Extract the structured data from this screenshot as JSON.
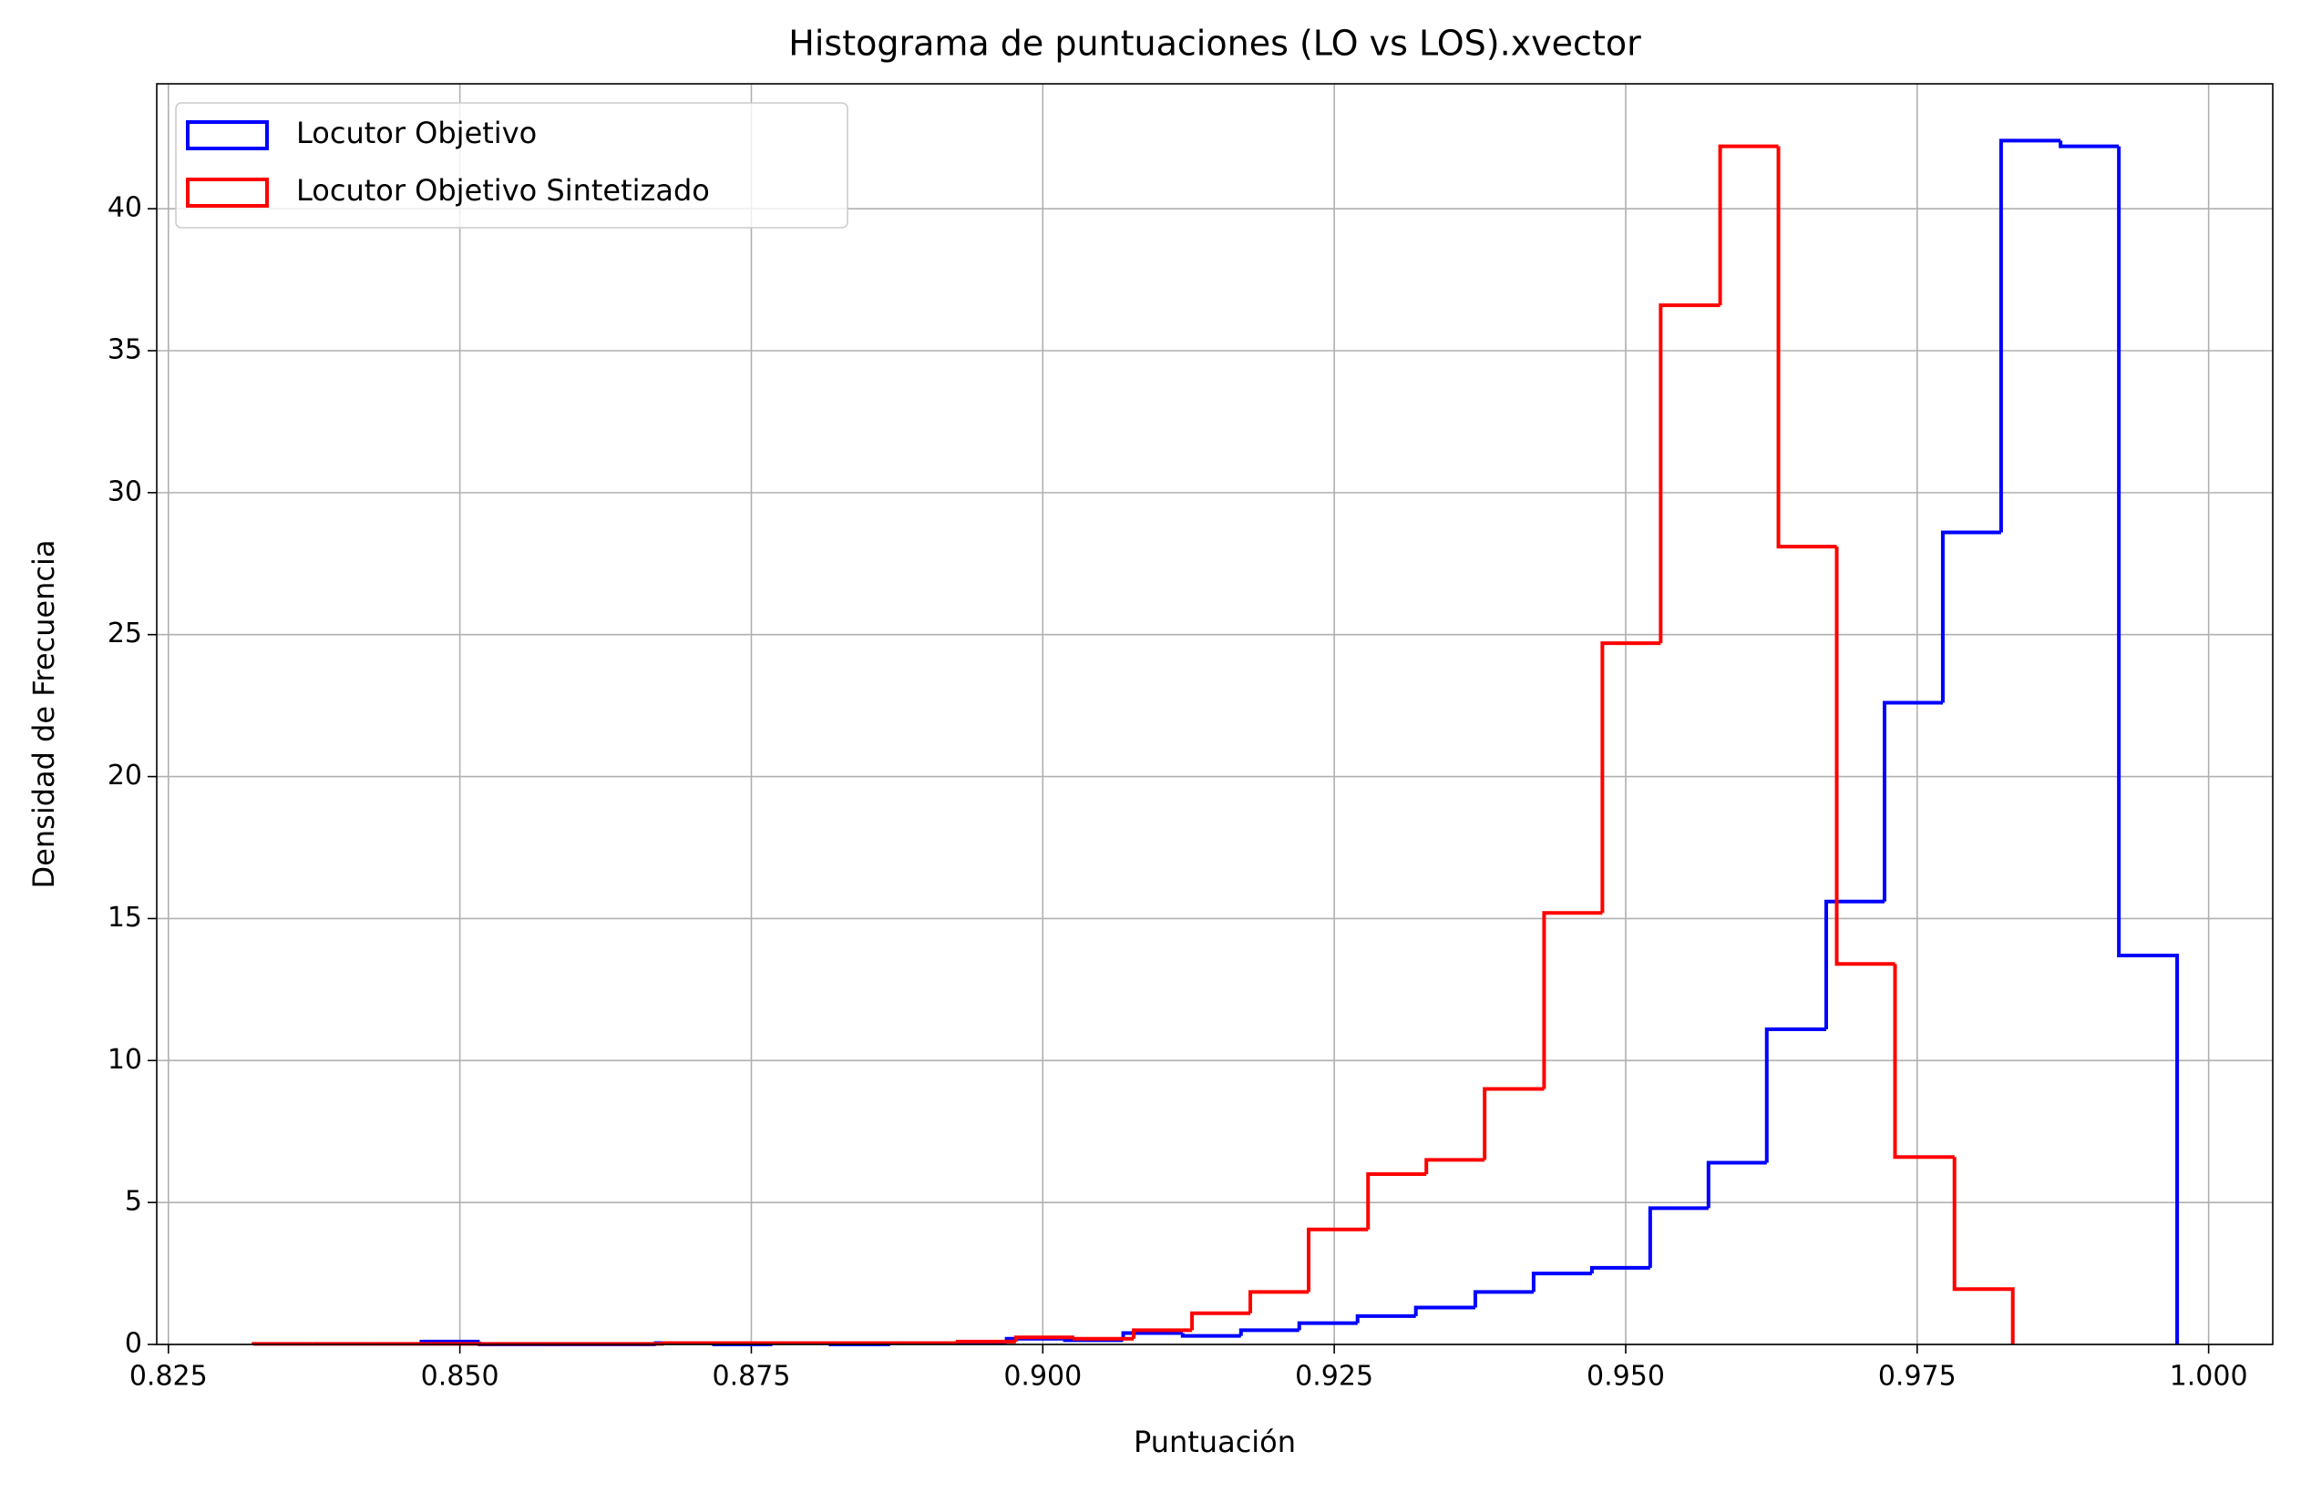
{
  "chart_data": {
    "type": "histogram",
    "title": "Histograma de puntuaciones (LO vs LOS).xvector",
    "x_label": "Puntuación",
    "y_label": "Densidad de Frecuencia",
    "xlim": [
      0.824,
      1.0055
    ],
    "ylim": [
      0,
      44.4
    ],
    "xticks": [
      0.825,
      {
        "value": 0.85,
        "label": "0.850"
      },
      0.875,
      {
        "value": 0.9,
        "label": "0.900"
      },
      0.925,
      {
        "value": 0.95,
        "label": "0.950"
      },
      0.975,
      {
        "value": 1,
        "label": "1.000"
      }
    ],
    "yticks": [
      0,
      5,
      10,
      15,
      20,
      25,
      30,
      35,
      40
    ],
    "grid": true,
    "legend_position": "upper-left",
    "series": [
      {
        "name": "Locutor Objetivo",
        "color": "#0000ff",
        "bins": [
          0.8467,
          0.8517,
          0.8567,
          0.8618,
          0.8668,
          0.8718,
          0.8768,
          0.8818,
          0.8869,
          0.8919,
          0.8969,
          0.9019,
          0.9069,
          0.912,
          0.917,
          0.922,
          0.927,
          0.932,
          0.9371,
          0.9421,
          0.9471,
          0.9521,
          0.9571,
          0.9621,
          0.9672,
          0.9722,
          0.9772,
          0.9822,
          0.9873,
          0.9923,
          0.9973
        ],
        "values": [
          0.1,
          0,
          0,
          0,
          0.05,
          0,
          0.05,
          0,
          0.05,
          0.05,
          0.2,
          0.15,
          0.4,
          0.3,
          0.5,
          0.75,
          1.0,
          1.3,
          1.85,
          2.5,
          2.7,
          4.8,
          6.4,
          11.1,
          15.6,
          22.6,
          28.6,
          42.4,
          42.2,
          13.7
        ]
      },
      {
        "name": "Locutor Objetivo Sintetizado",
        "color": "#ff0000",
        "bins": [
          0.8323,
          0.8373,
          0.8424,
          0.8474,
          0.8524,
          0.8575,
          0.8625,
          0.8675,
          0.8725,
          0.8776,
          0.8826,
          0.8876,
          0.8927,
          0.8977,
          0.9027,
          0.9078,
          0.9128,
          0.9178,
          0.9228,
          0.9279,
          0.9329,
          0.9379,
          0.943,
          0.948,
          0.953,
          0.9581,
          0.9631,
          0.9681,
          0.9731,
          0.9782,
          0.9832
        ],
        "values": [
          0.02,
          0.02,
          0.02,
          0.02,
          0.02,
          0.02,
          0.02,
          0.05,
          0.05,
          0.05,
          0.05,
          0.05,
          0.1,
          0.25,
          0.2,
          0.5,
          1.1,
          1.85,
          4.05,
          6.0,
          6.5,
          9.0,
          15.2,
          24.7,
          36.6,
          42.2,
          28.1,
          13.4,
          6.6,
          1.95
        ]
      }
    ]
  }
}
